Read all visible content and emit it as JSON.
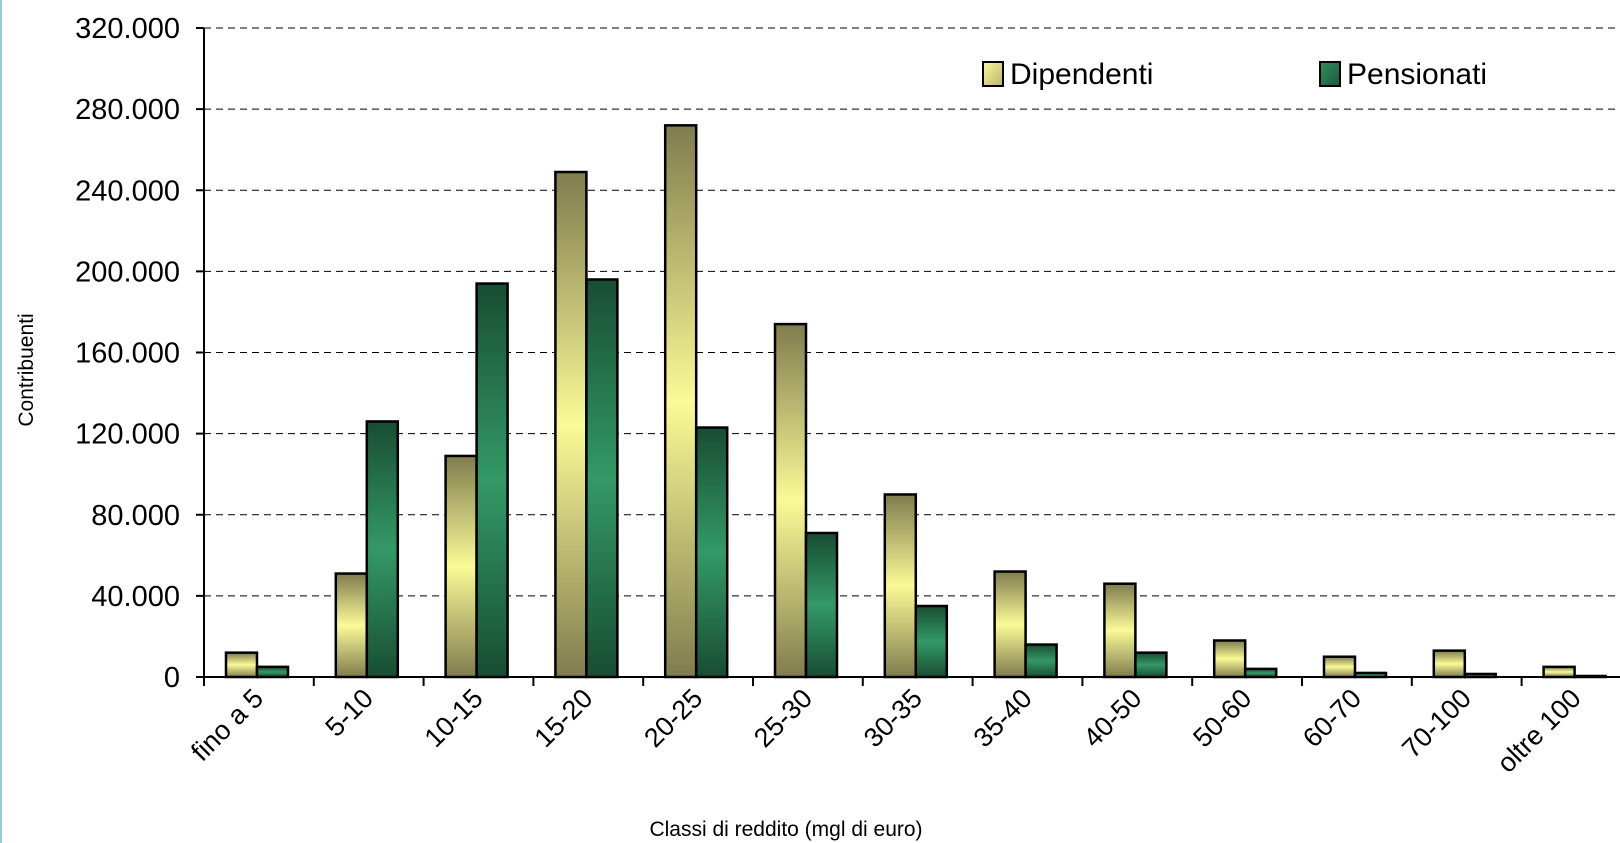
{
  "chart_data": {
    "type": "bar",
    "title": "",
    "xlabel": "Classi di reddito (mgl di euro)",
    "ylabel": "Contribuenti",
    "ylim": [
      0,
      320000
    ],
    "y_ticks": [
      0,
      40000,
      80000,
      120000,
      160000,
      200000,
      240000,
      280000,
      320000
    ],
    "y_tick_labels": [
      "0",
      "40.000",
      "80.000",
      "120.000",
      "160.000",
      "200.000",
      "240.000",
      "280.000",
      "320.000"
    ],
    "categories": [
      "fino a 5",
      "5-10",
      "10-15",
      "15-20",
      "20-25",
      "25-30",
      "30-35",
      "35-40",
      "40-50",
      "50-60",
      "60-70",
      "70-100",
      "oltre 100"
    ],
    "series": [
      {
        "name": "Dipendenti",
        "values": [
          12000,
          51000,
          109000,
          249000,
          272000,
          174000,
          90000,
          52000,
          46000,
          18000,
          10000,
          13000,
          5000
        ],
        "color": "#fafa96"
      },
      {
        "name": "Pensionati",
        "values": [
          5000,
          126000,
          194000,
          196000,
          123000,
          71000,
          35000,
          16000,
          12000,
          4000,
          2000,
          1500,
          500
        ],
        "color": "#339966"
      }
    ],
    "grid": true,
    "legend_position": "top-right"
  }
}
